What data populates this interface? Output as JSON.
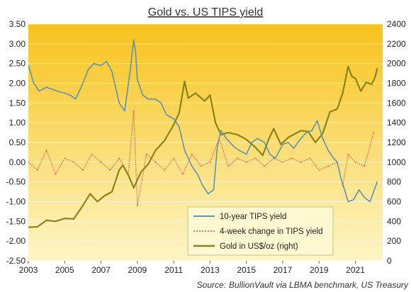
{
  "chart_data": {
    "type": "line",
    "title": "Gold vs. US TIPS yield",
    "source_label": "Source:",
    "source_text": "BullionVault via LBMA benchmark, US Treasury",
    "left_axis": {
      "min": -2.5,
      "max": 3.5,
      "ticks": [
        "-2.50",
        "-2.00",
        "-1.50",
        "-1.00",
        "-0.50",
        "0.00",
        "0.50",
        "1.00",
        "1.50",
        "2.00",
        "2.50",
        "3.00",
        "3.50"
      ]
    },
    "right_axis": {
      "min": 0,
      "max": 2400,
      "ticks": [
        "0",
        "200",
        "400",
        "600",
        "800",
        "1000",
        "1200",
        "1400",
        "1600",
        "1800",
        "2000",
        "2200",
        "2400"
      ]
    },
    "x_axis": {
      "min": 2003,
      "max": 2022.5,
      "ticks": [
        "2003",
        "2005",
        "2007",
        "2009",
        "2011",
        "2013",
        "2015",
        "2017",
        "2019",
        "2021"
      ]
    },
    "legend_position": "bottom-center",
    "grid": true,
    "colors": {
      "tips": "#5f93ad",
      "change": "#e8494e",
      "gold": "#8a8418",
      "bg_top": "#f7c21b",
      "bg_bottom": "#fdf6c6"
    },
    "series": [
      {
        "name": "10-year TIPS yield",
        "axis": "left",
        "x": [
          2003.0,
          2003.3,
          2003.6,
          2004.0,
          2004.3,
          2004.6,
          2005.0,
          2005.3,
          2005.6,
          2006.0,
          2006.3,
          2006.6,
          2007.0,
          2007.3,
          2007.6,
          2008.0,
          2008.3,
          2008.6,
          2008.8,
          2008.9,
          2009.0,
          2009.3,
          2009.6,
          2010.0,
          2010.3,
          2010.6,
          2011.0,
          2011.3,
          2011.6,
          2012.0,
          2012.3,
          2012.6,
          2012.9,
          2013.2,
          2013.4,
          2013.6,
          2013.9,
          2014.3,
          2014.6,
          2015.0,
          2015.3,
          2015.6,
          2016.0,
          2016.3,
          2016.6,
          2017.0,
          2017.3,
          2017.6,
          2018.0,
          2018.3,
          2018.6,
          2018.9,
          2019.2,
          2019.5,
          2019.8,
          2020.0,
          2020.2,
          2020.4,
          2020.6,
          2020.9,
          2021.2,
          2021.5,
          2021.8,
          2022.0,
          2022.2
        ],
        "y": [
          2.45,
          2.0,
          1.8,
          1.9,
          1.85,
          1.8,
          1.75,
          1.7,
          1.6,
          2.0,
          2.35,
          2.5,
          2.45,
          2.55,
          2.3,
          1.5,
          1.3,
          2.3,
          3.1,
          2.8,
          2.1,
          1.7,
          1.6,
          1.6,
          1.5,
          1.2,
          1.1,
          0.9,
          0.3,
          -0.1,
          -0.3,
          -0.6,
          -0.8,
          -0.7,
          0.4,
          0.8,
          0.6,
          0.4,
          0.3,
          0.2,
          0.5,
          0.6,
          0.5,
          0.2,
          0.1,
          0.45,
          0.5,
          0.35,
          0.6,
          0.75,
          0.8,
          1.05,
          0.6,
          0.3,
          0.1,
          0.0,
          -0.4,
          -0.7,
          -1.0,
          -0.95,
          -0.7,
          -0.9,
          -1.0,
          -0.75,
          -0.5
        ]
      },
      {
        "name": "4-week change in TIPS yield",
        "axis": "left",
        "x": [
          2003.0,
          2003.5,
          2004.0,
          2004.5,
          2005.0,
          2005.5,
          2006.0,
          2006.5,
          2007.0,
          2007.5,
          2008.0,
          2008.5,
          2008.8,
          2009.0,
          2009.5,
          2010.0,
          2010.5,
          2011.0,
          2011.5,
          2012.0,
          2012.5,
          2013.0,
          2013.5,
          2014.0,
          2014.5,
          2015.0,
          2015.5,
          2016.0,
          2016.5,
          2017.0,
          2017.5,
          2018.0,
          2018.5,
          2019.0,
          2019.5,
          2020.0,
          2020.3,
          2020.6,
          2021.0,
          2021.5,
          2022.0
        ],
        "y": [
          0.0,
          -0.2,
          0.3,
          -0.3,
          0.1,
          0.0,
          -0.2,
          0.2,
          0.0,
          -0.2,
          0.1,
          -0.3,
          1.3,
          -1.1,
          0.2,
          0.0,
          -0.2,
          0.1,
          -0.3,
          0.2,
          -0.1,
          0.0,
          0.6,
          -0.1,
          0.1,
          0.0,
          0.1,
          -0.1,
          0.1,
          0.0,
          0.1,
          0.0,
          0.1,
          -0.2,
          -0.1,
          0.0,
          -0.6,
          0.2,
          0.0,
          -0.1,
          0.75
        ]
      },
      {
        "name": "Gold in US$/oz (right)",
        "axis": "right",
        "x": [
          2003.0,
          2003.5,
          2004.0,
          2004.5,
          2005.0,
          2005.5,
          2006.0,
          2006.4,
          2006.8,
          2007.2,
          2007.6,
          2008.0,
          2008.2,
          2008.5,
          2008.8,
          2009.2,
          2009.6,
          2010.0,
          2010.5,
          2011.0,
          2011.3,
          2011.6,
          2011.8,
          2012.2,
          2012.7,
          2013.0,
          2013.3,
          2013.6,
          2014.0,
          2014.5,
          2015.0,
          2015.5,
          2015.9,
          2016.2,
          2016.5,
          2016.9,
          2017.3,
          2017.7,
          2018.0,
          2018.4,
          2018.8,
          2019.2,
          2019.6,
          2020.0,
          2020.3,
          2020.6,
          2020.8,
          2021.0,
          2021.3,
          2021.6,
          2021.9,
          2022.1,
          2022.2
        ],
        "y": [
          340,
          345,
          410,
          400,
          430,
          425,
          560,
          680,
          600,
          660,
          700,
          920,
          970,
          870,
          740,
          900,
          980,
          1120,
          1220,
          1380,
          1500,
          1820,
          1650,
          1700,
          1620,
          1680,
          1400,
          1280,
          1300,
          1280,
          1230,
          1150,
          1070,
          1220,
          1340,
          1180,
          1250,
          1290,
          1320,
          1310,
          1200,
          1290,
          1510,
          1540,
          1700,
          1970,
          1870,
          1850,
          1720,
          1810,
          1790,
          1870,
          1950
        ]
      }
    ]
  }
}
